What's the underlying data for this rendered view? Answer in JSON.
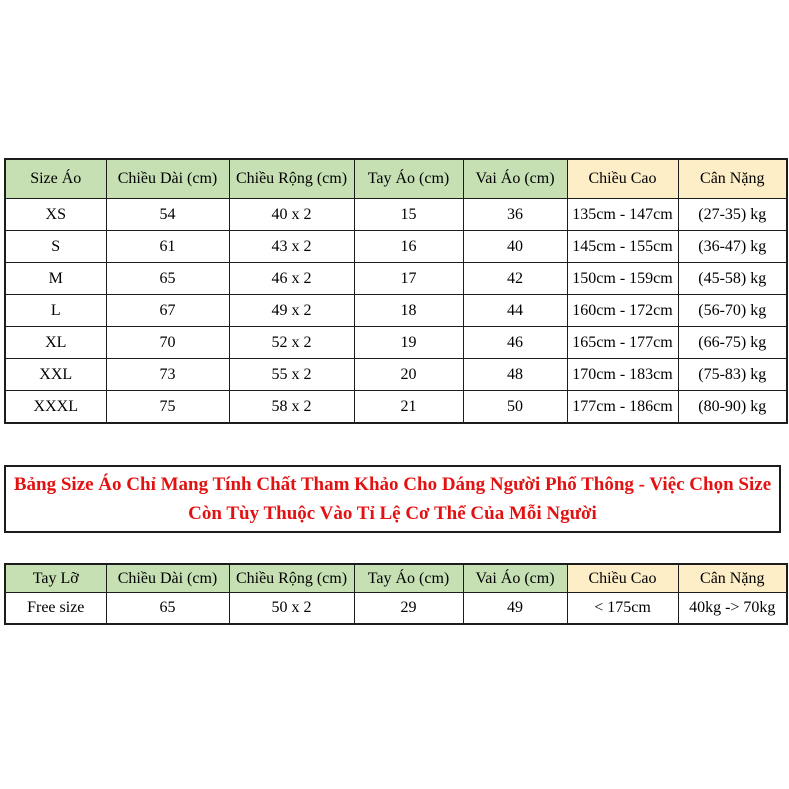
{
  "colors": {
    "green_header": "#c6e0b4",
    "yellow_header": "#fdeec8",
    "border": "#1c1c1c",
    "note_red": "#e31212",
    "background": "#ffffff"
  },
  "main_table": {
    "header": [
      "Size Áo",
      "Chiều Dài (cm)",
      "Chiều Rộng (cm)",
      "Tay Áo (cm)",
      "Vai Áo (cm)",
      "Chiều Cao",
      "Cân Nặng"
    ],
    "header_styles": [
      "green",
      "green",
      "green",
      "green",
      "green",
      "yellow",
      "yellow"
    ],
    "header_bold": [
      true,
      false,
      false,
      false,
      false,
      true,
      true
    ],
    "bold_cols": [
      0
    ],
    "rows": [
      [
        "XS",
        "54",
        "40 x 2",
        "15",
        "36",
        "135cm - 147cm",
        "(27-35) kg"
      ],
      [
        "S",
        "61",
        "43 x 2",
        "16",
        "40",
        "145cm - 155cm",
        "(36-47) kg"
      ],
      [
        "M",
        "65",
        "46 x 2",
        "17",
        "42",
        "150cm - 159cm",
        "(45-58) kg"
      ],
      [
        "L",
        "67",
        "49 x 2",
        "18",
        "44",
        "160cm - 172cm",
        "(56-70) kg"
      ],
      [
        "XL",
        "70",
        "52 x 2",
        "19",
        "46",
        "165cm - 177cm",
        "(66-75) kg"
      ],
      [
        "XXL",
        "73",
        "55 x 2",
        "20",
        "48",
        "170cm - 183cm",
        "(75-83) kg"
      ],
      [
        "XXXL",
        "75",
        "58 x 2",
        "21",
        "50",
        "177cm - 186cm",
        "(80-90) kg"
      ]
    ]
  },
  "note": {
    "line1": "Bảng Size Áo Chỉ Mang Tính Chất Tham Khảo Cho Dáng Người Phổ Thông - Việc Chọn Size",
    "line2": "Còn Tùy Thuộc Vào Tỉ Lệ Cơ Thể Của Mỗi Người"
  },
  "free_table": {
    "header": [
      "Tay Lỡ",
      "Chiều Dài (cm)",
      "Chiều Rộng (cm)",
      "Tay Áo (cm)",
      "Vai Áo (cm)",
      "Chiều Cao",
      "Cân Nặng"
    ],
    "header_styles": [
      "green",
      "green",
      "green",
      "green",
      "green",
      "yellow",
      "yellow"
    ],
    "header_bold": [
      true,
      false,
      false,
      false,
      false,
      true,
      true
    ],
    "bold_cols": [
      0,
      5,
      6
    ],
    "rows": [
      [
        "Free size",
        "65",
        "50 x 2",
        "29",
        "49",
        "< 175cm",
        "40kg -> 70kg"
      ]
    ]
  }
}
